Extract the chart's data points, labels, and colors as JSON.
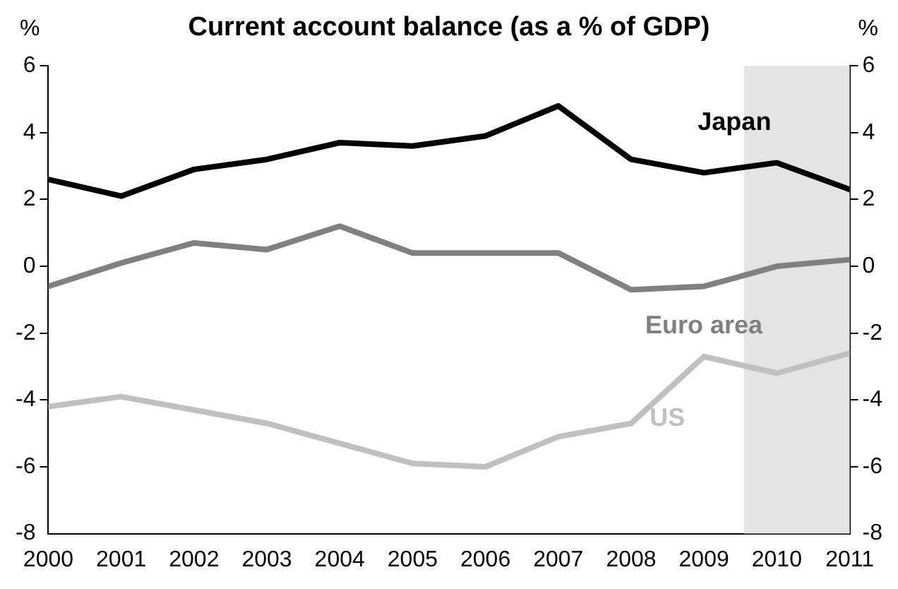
{
  "chart_data": {
    "type": "line",
    "title": "Current account balance (as a % of GDP)",
    "ylabel": "%",
    "y2label": "%",
    "x": [
      2000,
      2001,
      2002,
      2003,
      2004,
      2005,
      2006,
      2007,
      2008,
      2009,
      2010,
      2011
    ],
    "xlim": [
      2000,
      2011
    ],
    "xticks": [
      2000,
      2001,
      2002,
      2003,
      2004,
      2005,
      2006,
      2007,
      2008,
      2009,
      2010,
      2011
    ],
    "ylim": [
      -8,
      6
    ],
    "yticks": [
      -8,
      -6,
      -4,
      -2,
      0,
      2,
      4,
      6
    ],
    "y2lim": [
      -8,
      6
    ],
    "y2ticks": [
      -8,
      -6,
      -4,
      -2,
      0,
      2,
      4,
      6
    ],
    "series": [
      {
        "name": "Japan",
        "color": "#000000",
        "values": [
          2.6,
          2.1,
          2.9,
          3.2,
          3.7,
          3.6,
          3.9,
          4.8,
          3.2,
          2.8,
          3.1,
          2.3
        ]
      },
      {
        "name": "Euro area",
        "color": "#808080",
        "values": [
          -0.6,
          0.1,
          0.7,
          0.5,
          1.2,
          0.4,
          0.4,
          0.4,
          -0.7,
          -0.6,
          0.0,
          0.2
        ]
      },
      {
        "name": "US",
        "color": "#c0c0c0",
        "values": [
          -4.2,
          -3.9,
          -4.3,
          -4.7,
          -5.3,
          -5.9,
          -6.0,
          -5.1,
          -4.7,
          -2.7,
          -3.2,
          -2.6
        ]
      }
    ],
    "bands": [
      {
        "axis": "x",
        "from": 2009.55,
        "to": 2011,
        "color": "#e4e4e4"
      }
    ],
    "grid": false,
    "legend": false,
    "marker": "none",
    "line_style": "solid"
  }
}
